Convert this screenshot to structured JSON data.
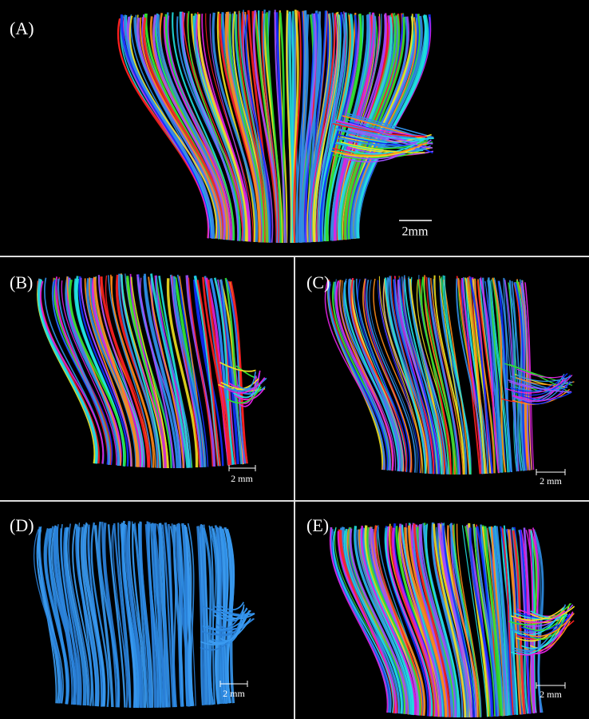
{
  "panels": [
    {
      "label": "(A)",
      "scale_bar": "2mm"
    },
    {
      "label": "(B)",
      "scale_bar": "2 mm"
    },
    {
      "label": "(C)",
      "scale_bar": "2 mm"
    },
    {
      "label": "(D)",
      "scale_bar": "2 mm"
    },
    {
      "label": "(E)",
      "scale_bar": "2 mm"
    }
  ]
}
